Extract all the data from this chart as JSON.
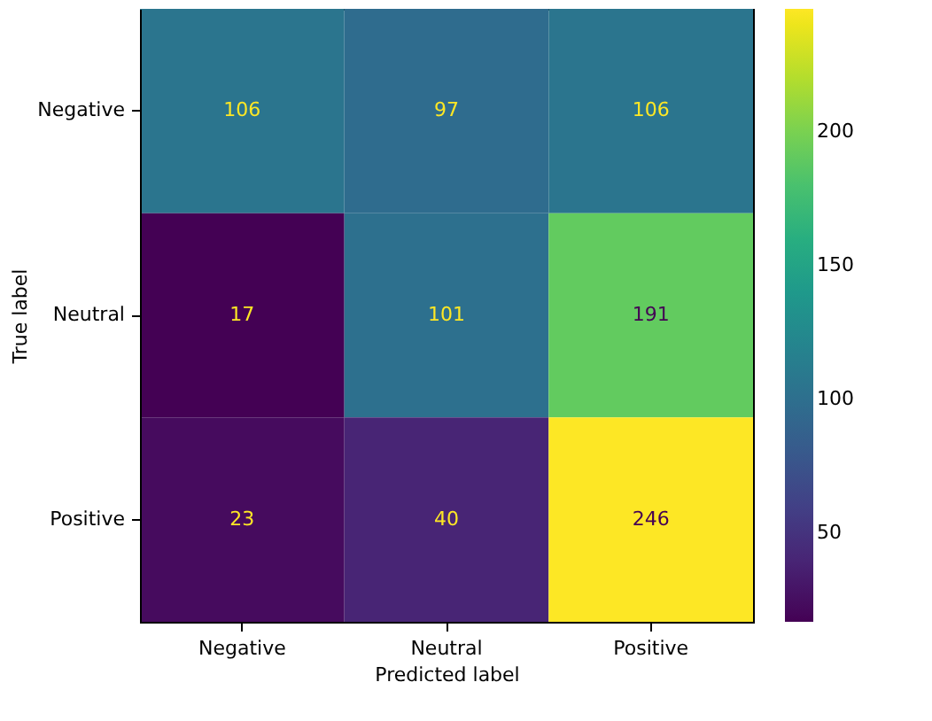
{
  "chart_data": {
    "type": "heatmap",
    "xlabel": "Predicted label",
    "ylabel": "True label",
    "categories": [
      "Negative",
      "Neutral",
      "Positive"
    ],
    "y_categories": [
      "Negative",
      "Neutral",
      "Positive"
    ],
    "cells": [
      [
        106,
        97,
        106
      ],
      [
        17,
        101,
        191
      ],
      [
        23,
        40,
        246
      ]
    ],
    "clim": [
      17,
      246
    ],
    "cticks": [
      50,
      100,
      150,
      200
    ],
    "data_labels": true
  }
}
